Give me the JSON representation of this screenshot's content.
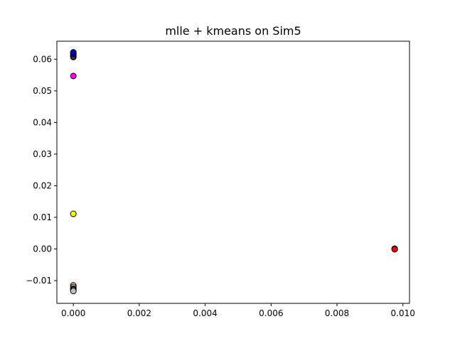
{
  "chart_data": {
    "type": "scatter",
    "title": "mlle + kmeans on Sim5",
    "xlabel": "",
    "ylabel": "",
    "xlim": [
      -0.0005,
      0.0102
    ],
    "ylim": [
      -0.0172,
      0.0657
    ],
    "xticks": [
      {
        "value": 0.0,
        "label": "0.000"
      },
      {
        "value": 0.002,
        "label": "0.002"
      },
      {
        "value": 0.004,
        "label": "0.004"
      },
      {
        "value": 0.006,
        "label": "0.006"
      },
      {
        "value": 0.008,
        "label": "0.008"
      },
      {
        "value": 0.01,
        "label": "0.010"
      }
    ],
    "yticks": [
      {
        "value": -0.01,
        "label": "−0.01"
      },
      {
        "value": 0.0,
        "label": "0.00"
      },
      {
        "value": 0.01,
        "label": "0.01"
      },
      {
        "value": 0.02,
        "label": "0.02"
      },
      {
        "value": 0.03,
        "label": "0.03"
      },
      {
        "value": 0.04,
        "label": "0.04"
      },
      {
        "value": 0.05,
        "label": "0.05"
      },
      {
        "value": 0.06,
        "label": "0.06"
      }
    ],
    "grid": false,
    "legend": "none",
    "clusters": [
      {
        "color": "#000000",
        "points": [
          [
            0.0,
            0.0607
          ],
          [
            0.0,
            0.0612
          ]
        ]
      },
      {
        "color": "#ffb000",
        "points": [
          [
            0.0,
            0.061
          ],
          [
            0.0,
            0.0618
          ]
        ]
      },
      {
        "color": "#0000cc",
        "points": [
          [
            0.0,
            0.0614
          ],
          [
            0.0,
            0.062
          ],
          [
            0.0,
            0.0622
          ]
        ]
      },
      {
        "color": "#ff00ff",
        "points": [
          [
            0.0,
            0.0547
          ]
        ]
      },
      {
        "color": "#ffff00",
        "points": [
          [
            0.0,
            0.0111
          ]
        ]
      },
      {
        "color": "#ffdab9",
        "points": [
          [
            0.0,
            -0.0115
          ],
          [
            0.0,
            -0.012
          ]
        ]
      },
      {
        "color": "#d2b48c",
        "points": [
          [
            0.0,
            -0.0125
          ],
          [
            0.0,
            -0.0128
          ]
        ]
      },
      {
        "color": "#ffffff",
        "points": [
          [
            0.0,
            -0.013
          ]
        ]
      },
      {
        "color": "#c0c0c0",
        "points": [
          [
            0.0,
            -0.0133
          ]
        ]
      },
      {
        "color": "#ff0000",
        "points": [
          [
            0.00975,
            0.0
          ],
          [
            0.00975,
            0.0001
          ],
          [
            0.00975,
            -0.0001
          ]
        ]
      }
    ]
  }
}
